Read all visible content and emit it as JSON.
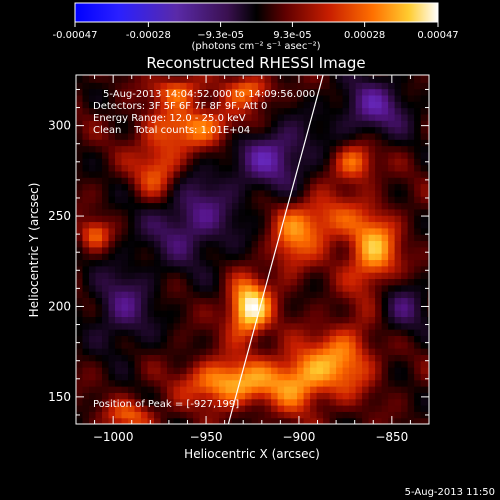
{
  "chart_data": {
    "type": "heatmap",
    "title": "Reconstructed RHESSI Image",
    "xlabel": "Heliocentric X (arcsec)",
    "ylabel": "Heliocentric Y (arcsec)",
    "xlim": [
      -1020,
      -830
    ],
    "ylim": [
      135,
      328
    ],
    "x_ticks": [
      -1000,
      -950,
      -900,
      -850
    ],
    "x_tick_labels": [
      "−1000",
      "−950",
      "−900",
      "−850"
    ],
    "y_ticks": [
      150,
      200,
      250,
      300
    ],
    "y_tick_labels": [
      "150",
      "200",
      "250",
      "300"
    ],
    "annotations": [
      "5-Aug-2013 14:04:52.000 to 14:09:56.000",
      "Detectors: 3F 5F 6F 7F 8F 9F, Att 0",
      "Energy Range: 12.0 - 25.0 keV",
      "Clean    Total counts: 1.01E+04",
      "Position of Peak = [-927,199]"
    ],
    "peak": {
      "x": -927,
      "y": 199
    },
    "limb_line": {
      "x": [
        -938,
        -887
      ],
      "y": [
        135,
        328
      ]
    },
    "colorbar": {
      "min": -0.00047,
      "max": 0.00047,
      "tick_values": [
        -0.00047,
        -0.00028,
        -9.3e-05,
        9.3e-05,
        0.00028,
        0.00047
      ],
      "tick_labels": [
        "-0.00047",
        "-0.00028",
        "−9.3e-05",
        "9.3e-05",
        "0.00028",
        "0.00047"
      ],
      "units": "(photons cm⁻² s⁻¹ asec⁻²)",
      "colors": [
        "#0000ff",
        "#6a2cc8",
        "#551488",
        "#2a0a3a",
        "#000000",
        "#600000",
        "#c81e00",
        "#ff7000",
        "#ffcc30",
        "#ffffff"
      ]
    },
    "sources": [
      {
        "x": -927,
        "y": 199,
        "amp": 1.0,
        "sx": 8,
        "sy": 11
      },
      {
        "x": -938,
        "y": 158,
        "amp": 0.75,
        "sx": 16,
        "sy": 9
      },
      {
        "x": -900,
        "y": 160,
        "amp": 0.65,
        "sx": 12,
        "sy": 12
      },
      {
        "x": -875,
        "y": 172,
        "amp": 0.55,
        "sx": 12,
        "sy": 14
      },
      {
        "x": -860,
        "y": 230,
        "amp": 0.7,
        "sx": 10,
        "sy": 16
      },
      {
        "x": -890,
        "y": 248,
        "amp": 0.55,
        "sx": 13,
        "sy": 10
      },
      {
        "x": -870,
        "y": 280,
        "amp": 0.6,
        "sx": 8,
        "sy": 8
      },
      {
        "x": -975,
        "y": 275,
        "amp": 0.6,
        "sx": 10,
        "sy": 14
      },
      {
        "x": -950,
        "y": 300,
        "amp": 0.55,
        "sx": 20,
        "sy": 9
      },
      {
        "x": -965,
        "y": 320,
        "amp": 0.5,
        "sx": 10,
        "sy": 6
      },
      {
        "x": -1010,
        "y": 240,
        "amp": 0.5,
        "sx": 6,
        "sy": 6
      },
      {
        "x": -925,
        "y": 320,
        "amp": 0.5,
        "sx": 9,
        "sy": 6
      },
      {
        "x": -990,
        "y": 140,
        "amp": 0.45,
        "sx": 10,
        "sy": 6
      },
      {
        "x": -905,
        "y": 232,
        "amp": 0.4,
        "sx": 8,
        "sy": 12
      },
      {
        "x": -960,
        "y": 250,
        "amp": -0.55,
        "sx": 18,
        "sy": 18
      },
      {
        "x": -915,
        "y": 285,
        "amp": -0.6,
        "sx": 16,
        "sy": 14
      },
      {
        "x": -860,
        "y": 310,
        "amp": -0.55,
        "sx": 14,
        "sy": 12
      },
      {
        "x": -995,
        "y": 200,
        "amp": -0.45,
        "sx": 12,
        "sy": 16
      },
      {
        "x": -845,
        "y": 200,
        "amp": -0.4,
        "sx": 10,
        "sy": 12
      }
    ]
  },
  "footer": {
    "timestamp": "5-Aug-2013 11:50"
  }
}
